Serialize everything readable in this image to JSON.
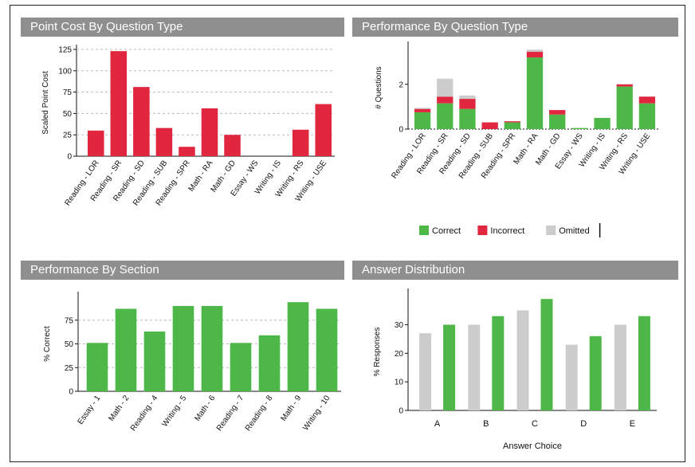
{
  "chart_data": [
    {
      "type": "bar",
      "title": "Point Cost By Question Type",
      "ylabel": "Scaled Point Cost",
      "xlabel": "",
      "ylim": [
        0,
        125
      ],
      "yticks": [
        0,
        25,
        50,
        75,
        100,
        125
      ],
      "grid": "y-dashed",
      "color": "#e0273f",
      "categories": [
        "Reading - LOR",
        "Reading - SR",
        "Reading - SD",
        "Reading - SUB",
        "Reading - SPR",
        "Math - RA",
        "Math - GD",
        "Essay - WS",
        "Writing - IS",
        "Writing - RS",
        "Writing - USE"
      ],
      "values": [
        30,
        123,
        81,
        33,
        11,
        56,
        25,
        0,
        0,
        31,
        61
      ]
    },
    {
      "type": "bar",
      "stacked": true,
      "title": "Performance By Question Type",
      "ylabel": "# Questions",
      "xlabel": "",
      "ylim": [
        0,
        3.7
      ],
      "yticks": [
        0,
        2
      ],
      "categories": [
        "Reading - LOR",
        "Reading - SR",
        "Reading - SD",
        "Reading - SUB",
        "Reading - SPR",
        "Math - RA",
        "Math - GD",
        "Essay - WS",
        "Writing - IS",
        "Writing - RS",
        "Writing - USE"
      ],
      "series": [
        {
          "name": "Correct",
          "color": "#4db848",
          "values": [
            0.75,
            1.15,
            0.9,
            0,
            0.3,
            3.2,
            0.65,
            0.05,
            0.5,
            1.9,
            1.15
          ]
        },
        {
          "name": "Incorrect",
          "color": "#e0273f",
          "values": [
            0.15,
            0.3,
            0.45,
            0.3,
            0.05,
            0.25,
            0.2,
            0,
            0,
            0.1,
            0.3
          ]
        },
        {
          "name": "Omitted",
          "color": "#cccccc",
          "values": [
            0.05,
            0.8,
            0.15,
            0,
            0,
            0.1,
            0,
            0,
            0,
            0,
            0
          ]
        }
      ],
      "legend": "bottom"
    },
    {
      "type": "bar",
      "title": "Performance By Section",
      "ylabel": "% Correct",
      "xlabel": "",
      "ylim": [
        0,
        100
      ],
      "yticks": [
        0,
        25,
        50,
        75
      ],
      "grid": "y-dashed",
      "color": "#4db848",
      "categories": [
        "Essay - 1",
        "Math - 2",
        "Reading - 4",
        "Writing - 5",
        "Math - 6",
        "Reading - 7",
        "Reading - 8",
        "Math - 9",
        "Writing - 10"
      ],
      "values": [
        51,
        87,
        63,
        90,
        90,
        51,
        59,
        94,
        87
      ]
    },
    {
      "type": "bar",
      "title": "Answer Distribution",
      "ylabel": "% Responses",
      "xlabel": "Answer Choice",
      "ylim": [
        0,
        41
      ],
      "yticks": [
        0,
        10,
        20,
        30
      ],
      "categories": [
        "A",
        "B",
        "C",
        "D",
        "E"
      ],
      "series": [
        {
          "name": "",
          "color": "#cccccc",
          "values": [
            27,
            30,
            35,
            23,
            30
          ]
        },
        {
          "name": "",
          "color": "#4db848",
          "values": [
            30,
            33,
            39,
            26,
            33
          ]
        }
      ]
    }
  ]
}
